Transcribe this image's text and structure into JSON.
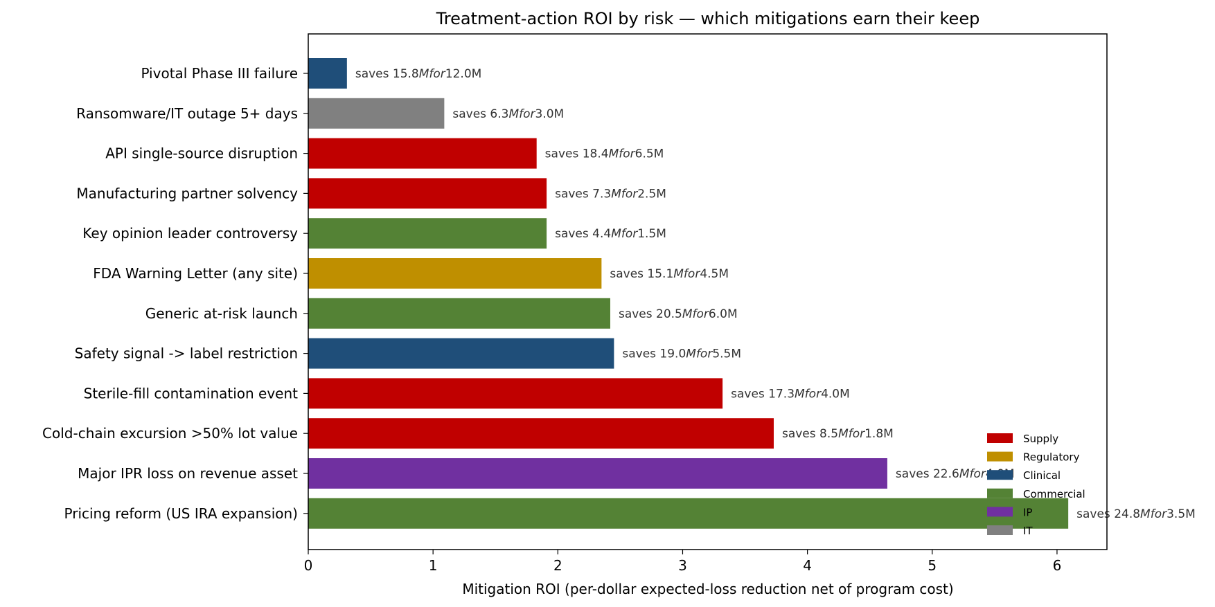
{
  "chart_data": {
    "type": "bar",
    "orientation": "horizontal",
    "title": "Treatment-action ROI by risk — which mitigations earn their keep",
    "xlabel": "Mitigation ROI  (per-dollar expected-loss reduction net of program cost)",
    "ylabel": "",
    "xlim": [
      0,
      6.4
    ],
    "xticks": [
      0,
      1,
      2,
      3,
      4,
      5,
      6
    ],
    "grid": false,
    "legend_position": "bottom-right",
    "legend": [
      {
        "name": "Supply",
        "color": "#C00000"
      },
      {
        "name": "Regulatory",
        "color": "#BF8F00"
      },
      {
        "name": "Clinical",
        "color": "#1F4E79"
      },
      {
        "name": "Commercial",
        "color": "#548235"
      },
      {
        "name": "IP",
        "color": "#7030A0"
      },
      {
        "name": "IT",
        "color": "#808080"
      }
    ],
    "bars": [
      {
        "category": "Pivotal Phase III failure",
        "value": 0.31,
        "group": "Clinical",
        "color": "#1F4E79",
        "label_a": "saves 15.8",
        "label_m": "Mfor",
        "label_b": "12.0M"
      },
      {
        "category": "Ransomware/IT outage 5+ days",
        "value": 1.09,
        "group": "IT",
        "color": "#808080",
        "label_a": "saves 6.3",
        "label_m": "Mfor",
        "label_b": "3.0M"
      },
      {
        "category": "API single-source disruption",
        "value": 1.83,
        "group": "Supply",
        "color": "#C00000",
        "label_a": "saves 18.4",
        "label_m": "Mfor",
        "label_b": "6.5M"
      },
      {
        "category": "Manufacturing partner solvency",
        "value": 1.91,
        "group": "Supply",
        "color": "#C00000",
        "label_a": "saves 7.3",
        "label_m": "Mfor",
        "label_b": "2.5M"
      },
      {
        "category": "Key opinion leader controversy",
        "value": 1.91,
        "group": "Commercial",
        "color": "#548235",
        "label_a": "saves 4.4",
        "label_m": "Mfor",
        "label_b": "1.5M"
      },
      {
        "category": "FDA Warning Letter (any site)",
        "value": 2.35,
        "group": "Regulatory",
        "color": "#BF8F00",
        "label_a": "saves 15.1",
        "label_m": "Mfor",
        "label_b": "4.5M"
      },
      {
        "category": "Generic at-risk launch",
        "value": 2.42,
        "group": "Commercial",
        "color": "#548235",
        "label_a": "saves 20.5",
        "label_m": "Mfor",
        "label_b": "6.0M"
      },
      {
        "category": "Safety signal -> label restriction",
        "value": 2.45,
        "group": "Clinical",
        "color": "#1F4E79",
        "label_a": "saves 19.0",
        "label_m": "Mfor",
        "label_b": "5.5M"
      },
      {
        "category": "Sterile-fill contamination event",
        "value": 3.32,
        "group": "Supply",
        "color": "#C00000",
        "label_a": "saves 17.3",
        "label_m": "Mfor",
        "label_b": "4.0M"
      },
      {
        "category": "Cold-chain excursion >50% lot value",
        "value": 3.73,
        "group": "Supply",
        "color": "#C00000",
        "label_a": "saves 8.5",
        "label_m": "Mfor",
        "label_b": "1.8M"
      },
      {
        "category": "Major IPR loss on revenue asset",
        "value": 4.64,
        "group": "IP",
        "color": "#7030A0",
        "label_a": "saves 22.6",
        "label_m": "Mfor",
        "label_b": "4.0M"
      },
      {
        "category": "Pricing reform (US IRA expansion)",
        "value": 6.09,
        "group": "Commercial",
        "color": "#548235",
        "label_a": "saves 24.8",
        "label_m": "Mfor",
        "label_b": "3.5M"
      }
    ]
  }
}
